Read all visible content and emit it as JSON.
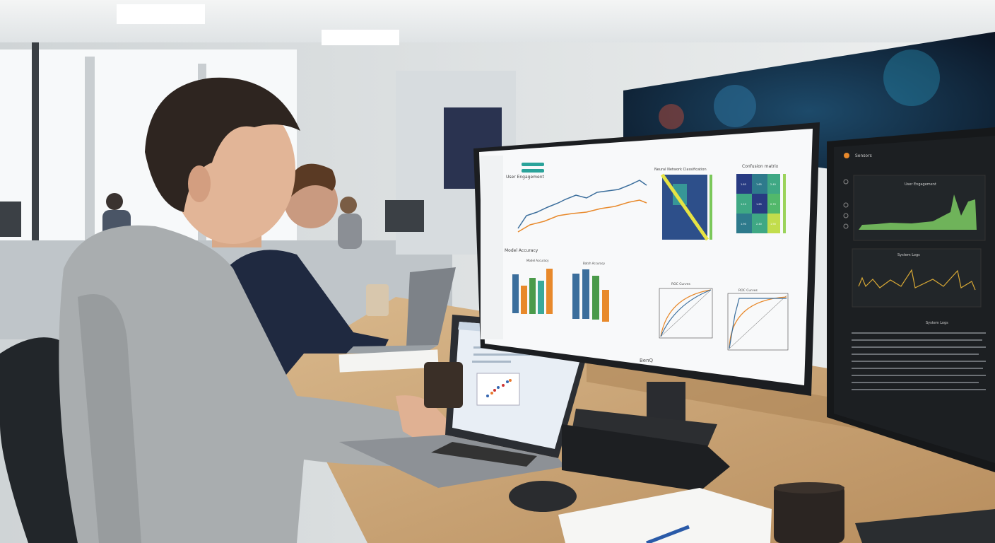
{
  "main_monitor": {
    "brand": "BenQ",
    "panels": {
      "engagement_title": "User Engagement",
      "heatmap_title": "Neural Network Classification",
      "confusion_title": "Confusion matrix",
      "accuracy_title": "Model Accuracy",
      "accuracy_sub_1": "Model Accuracy",
      "accuracy_sub_2": "Batch Accuracy",
      "roc_title_1": "ROC Curves",
      "roc_title_2": "ROC Curves"
    },
    "confusion_values": [
      "1.65",
      "1.65",
      "2.40",
      "1.10",
      "1.65",
      "0.70",
      "1.90",
      "2.40",
      "1.90"
    ],
    "colors": {
      "blue": "#3b6e9c",
      "orange": "#e8892b",
      "green": "#4a9a4a",
      "teal": "#3aa99a"
    }
  },
  "right_monitor": {
    "app_title": "Sensors",
    "panel_1_title": "User Engagement",
    "panel_2_title": "System Logs",
    "panel_3_title": "System Logs",
    "colors": {
      "bg": "#1c1f22",
      "green": "#6fb35a",
      "yellow": "#d9a935"
    }
  }
}
